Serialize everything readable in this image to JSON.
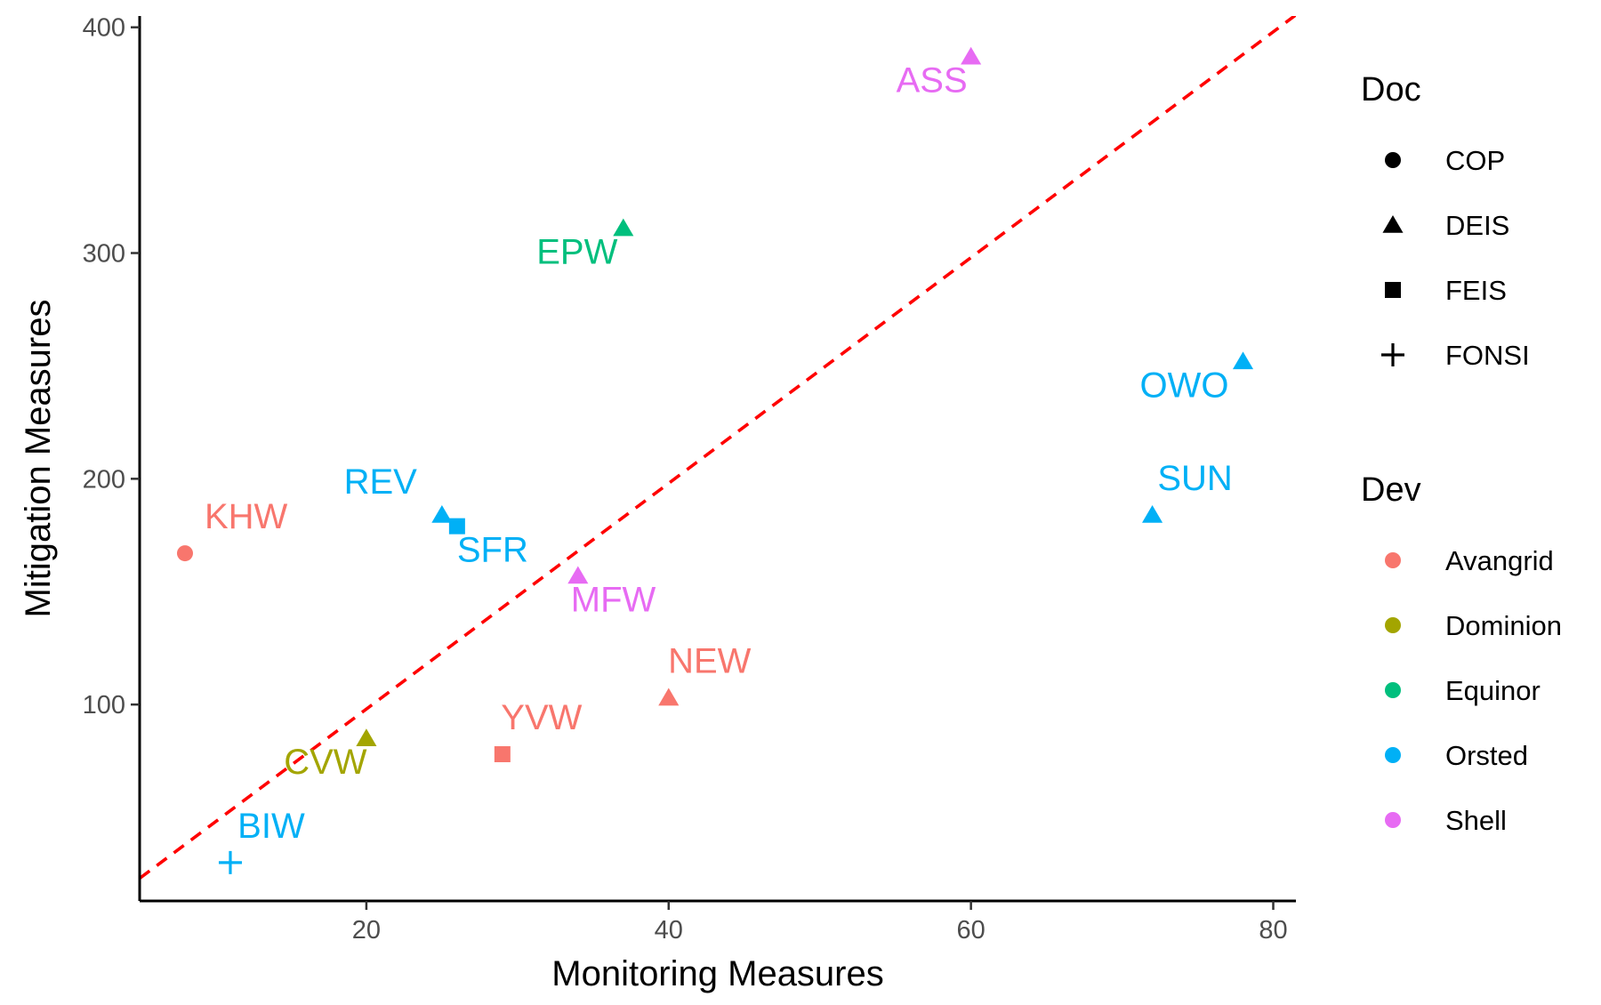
{
  "chart_data": {
    "type": "scatter",
    "xlabel": "Monitoring Measures",
    "ylabel": "Mitigation Measures",
    "xlim": [
      5,
      81.5
    ],
    "ylim": [
      13,
      405
    ],
    "xticks": [
      20,
      40,
      60,
      80
    ],
    "yticks": [
      100,
      200,
      300,
      400
    ],
    "grid": false,
    "reference_line": {
      "style": "dashed",
      "color": "#ff0000",
      "slope": 5.0,
      "intercept": -2
    },
    "points": [
      {
        "label": "KHW",
        "x": 8,
        "y": 167,
        "doc": "COP",
        "dev": "Avangrid"
      },
      {
        "label": "REV",
        "x": 25,
        "y": 184,
        "doc": "DEIS",
        "dev": "Orsted"
      },
      {
        "label": "SFR",
        "x": 26,
        "y": 179,
        "doc": "FEIS",
        "dev": "Orsted"
      },
      {
        "label": "EPW",
        "x": 37,
        "y": 311,
        "doc": "DEIS",
        "dev": "Equinor"
      },
      {
        "label": "ASS",
        "x": 60,
        "y": 387,
        "doc": "DEIS",
        "dev": "Shell"
      },
      {
        "label": "MFW",
        "x": 34,
        "y": 157,
        "doc": "DEIS",
        "dev": "Shell"
      },
      {
        "label": "NEW",
        "x": 40,
        "y": 103,
        "doc": "DEIS",
        "dev": "Avangrid"
      },
      {
        "label": "YVW",
        "x": 29,
        "y": 78,
        "doc": "FEIS",
        "dev": "Avangrid"
      },
      {
        "label": "CVW",
        "x": 20,
        "y": 85,
        "doc": "DEIS",
        "dev": "Dominion"
      },
      {
        "label": "BIW",
        "x": 11,
        "y": 30,
        "doc": "FONSI",
        "dev": "Orsted"
      },
      {
        "label": "OWO",
        "x": 78,
        "y": 252,
        "doc": "DEIS",
        "dev": "Orsted"
      },
      {
        "label": "SUN",
        "x": 72,
        "y": 184,
        "doc": "DEIS",
        "dev": "Orsted"
      }
    ],
    "legend": {
      "placement": "right",
      "doc": {
        "title": "Doc",
        "items": [
          {
            "label": "COP",
            "shape": "circle"
          },
          {
            "label": "DEIS",
            "shape": "triangle"
          },
          {
            "label": "FEIS",
            "shape": "square"
          },
          {
            "label": "FONSI",
            "shape": "plus"
          }
        ]
      },
      "dev": {
        "title": "Dev",
        "items": [
          {
            "label": "Avangrid",
            "color": "#F8766D"
          },
          {
            "label": "Dominion",
            "color": "#A3A500"
          },
          {
            "label": "Equinor",
            "color": "#00BF7D"
          },
          {
            "label": "Orsted",
            "color": "#00B0F6"
          },
          {
            "label": "Shell",
            "color": "#E76BF3"
          }
        ]
      }
    }
  }
}
